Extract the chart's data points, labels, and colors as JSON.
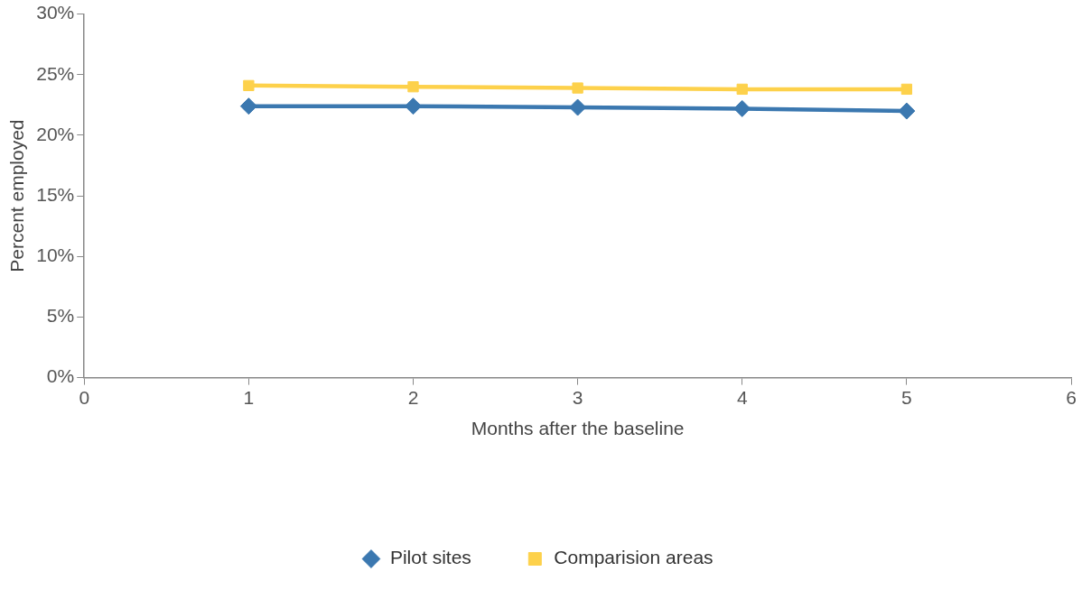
{
  "chart_data": {
    "type": "line",
    "xlabel": "Months after the baseline",
    "ylabel": "Percent employed",
    "x": [
      1,
      2,
      3,
      4,
      5
    ],
    "series": [
      {
        "name": "Pilot sites",
        "color": "#3b78b0",
        "marker": "diamond",
        "values": [
          22.4,
          22.4,
          22.3,
          22.2,
          22.0
        ]
      },
      {
        "name": "Comparision areas",
        "color": "#fdd14b",
        "marker": "square",
        "values": [
          24.1,
          24.0,
          23.9,
          23.8,
          23.8
        ]
      }
    ],
    "xlim": [
      0,
      6
    ],
    "xticks": [
      0,
      1,
      2,
      3,
      4,
      5,
      6
    ],
    "ylim": [
      0,
      30
    ],
    "yticks": [
      {
        "value": 0,
        "label": "0%"
      },
      {
        "value": 5,
        "label": "5%"
      },
      {
        "value": 10,
        "label": "10%"
      },
      {
        "value": 15,
        "label": "15%"
      },
      {
        "value": 20,
        "label": "20%"
      },
      {
        "value": 25,
        "label": "25%"
      },
      {
        "value": 30,
        "label": "30%"
      }
    ],
    "grid": false,
    "legend": "bottom",
    "line_style": "solid"
  }
}
